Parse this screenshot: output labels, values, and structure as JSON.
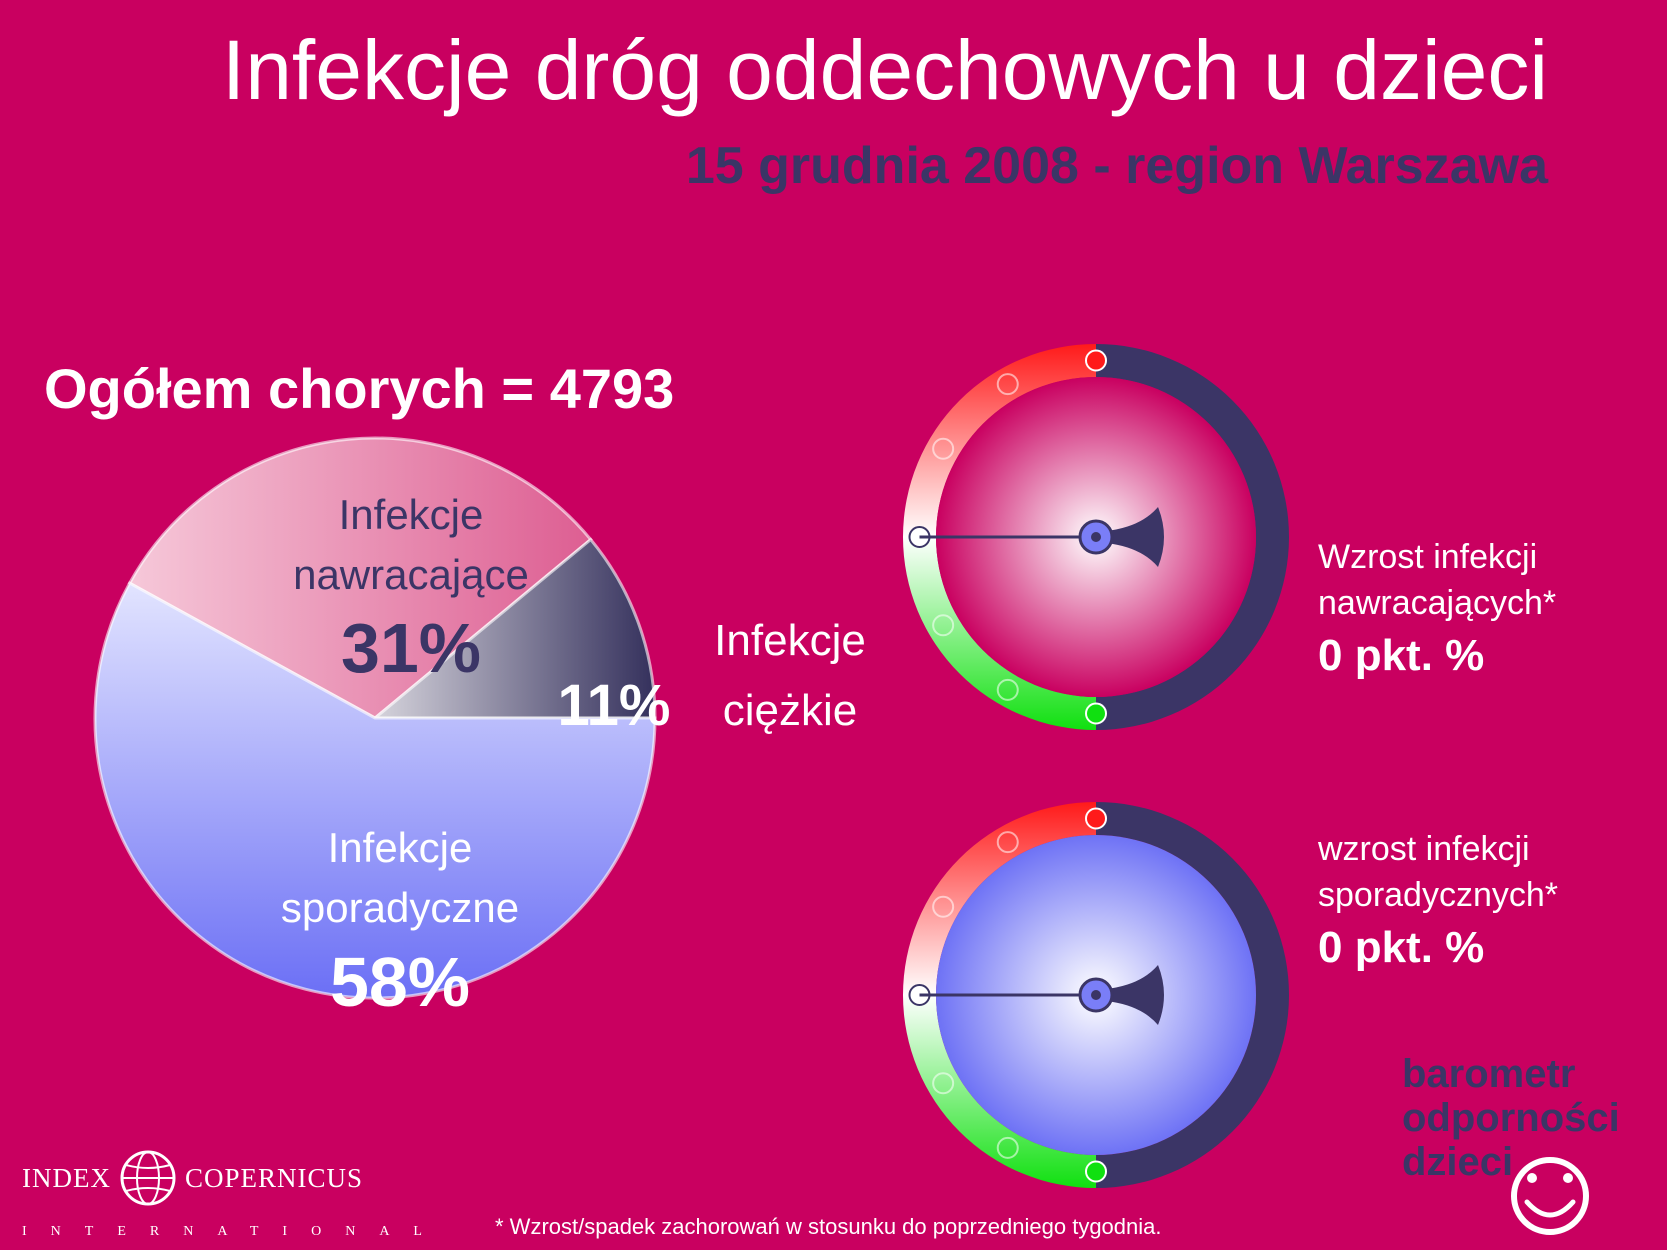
{
  "header": {
    "title": "Infekcje dróg oddechowych u dzieci",
    "subtitle": "15 grudnia 2008 - region Warszawa"
  },
  "total_label": "Ogółem chorych = 4793",
  "chart_data": [
    {
      "type": "pie",
      "title": "",
      "slices": [
        {
          "label": "Infekcje nawracające",
          "value": 31,
          "value_label": "31%"
        },
        {
          "label": "Infekcje ciężkie",
          "value": 11,
          "value_label": "11%"
        },
        {
          "label": "Infekcje sporadyczne",
          "value": 58,
          "value_label": "58%"
        }
      ],
      "colors": {
        "nawracajace": "#e67fa8",
        "ciezkie": "#3b3566",
        "sporadyczne": "#8a8cf2"
      }
    }
  ],
  "pie_labels": {
    "recurrent_line1": "Infekcje",
    "recurrent_line2": "nawracające",
    "recurrent_value": "31%",
    "severe_value": "11%",
    "severe_line1": "Infekcje",
    "severe_line2": "ciężkie",
    "sporadic_line1": "Infekcje",
    "sporadic_line2": "sporadyczne",
    "sporadic_value": "58%"
  },
  "gauges": [
    {
      "line1": "Wzrost infekcji",
      "line2": "nawracających*",
      "value_label": "0 pkt. %",
      "value": 0,
      "face_color": "#c90060"
    },
    {
      "line1": "wzrost infekcji",
      "line2": "sporadycznych*",
      "value_label": "0 pkt. %",
      "value": 0,
      "face_color": "#6e72f5"
    }
  ],
  "brand": {
    "line1": "barometr",
    "line2": "odporności",
    "line3": "dzieci"
  },
  "logo": {
    "name_left": "INDEX",
    "name_right": "COPERNICUS",
    "sub": "INTERNATIONAL"
  },
  "footnote": "* Wzrost/spadek zachorowań w stosunku do poprzedniego tygodnia."
}
